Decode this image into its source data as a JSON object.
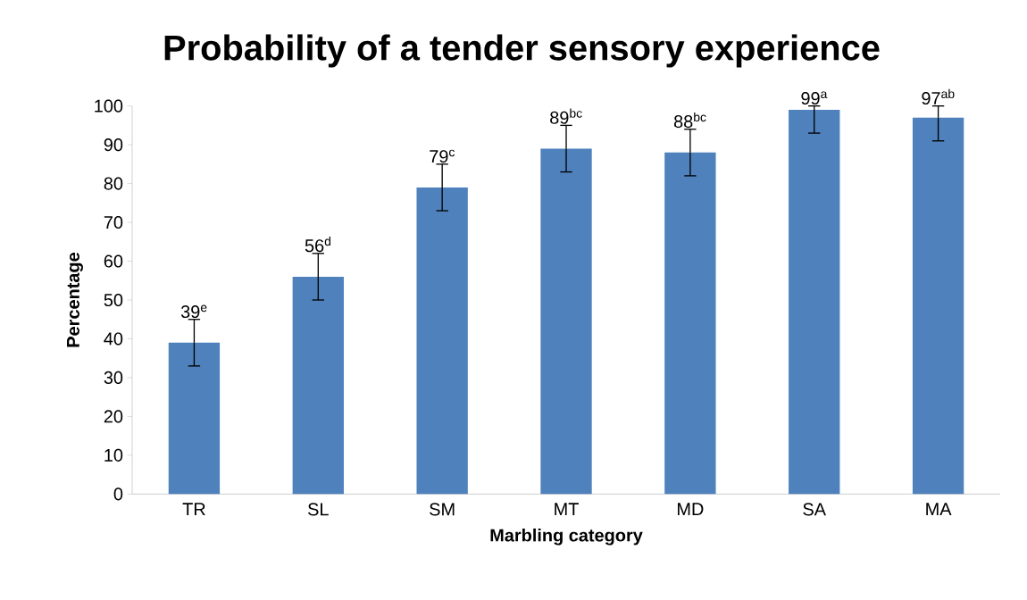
{
  "chart_data": {
    "type": "bar",
    "title": "Probability of a tender sensory experience",
    "xlabel": "Marbling category",
    "ylabel": "Percentage",
    "categories": [
      "TR",
      "SL",
      "SM",
      "MT",
      "MD",
      "SA",
      "MA"
    ],
    "values": [
      39,
      56,
      79,
      89,
      88,
      99,
      97
    ],
    "errors": [
      6,
      6,
      6,
      6,
      6,
      [
        93,
        100
      ],
      [
        91,
        100
      ]
    ],
    "value_labels": [
      "39$^{e}$",
      "56$^{d}$",
      "79$^{c}$",
      "89$^{bc}$",
      "88$^{bc}$",
      "99$^{a}$",
      "97$^{ab}$"
    ],
    "color": "#4f81bd",
    "ylim": [
      0,
      100
    ],
    "yticks": [
      0,
      10,
      20,
      30,
      40,
      50,
      60,
      70,
      80,
      90,
      100
    ],
    "grid": false
  }
}
